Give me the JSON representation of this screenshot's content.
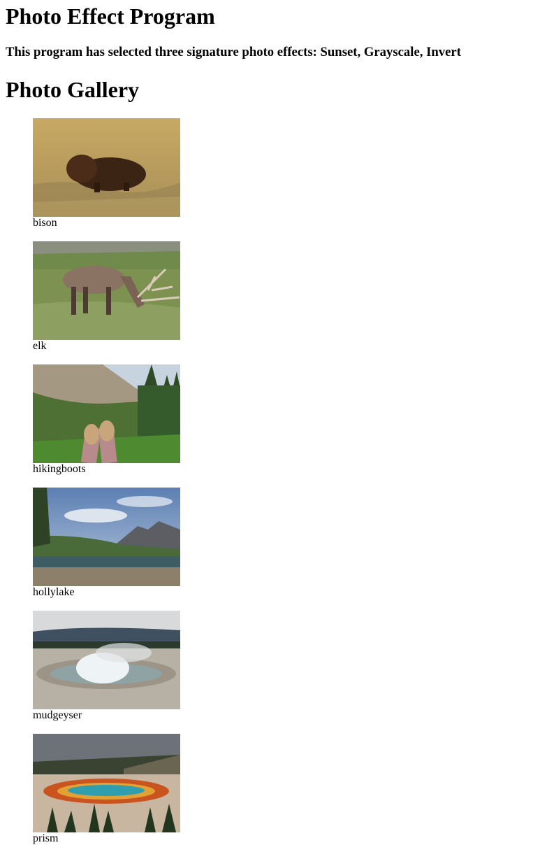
{
  "page": {
    "title": "Photo Effect Program",
    "subtitle": "This program has selected three signature photo effects: Sunset, Grayscale, Invert",
    "gallery_title": "Photo Gallery"
  },
  "photos": [
    {
      "caption": "bison"
    },
    {
      "caption": "elk"
    },
    {
      "caption": "hikingboots"
    },
    {
      "caption": "hollylake"
    },
    {
      "caption": "mudgeyser"
    },
    {
      "caption": "prism"
    }
  ]
}
